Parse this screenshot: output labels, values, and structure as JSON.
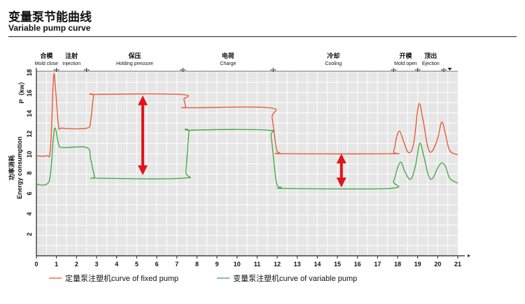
{
  "header": {
    "title_zh": "变量泵节能曲线",
    "title_en": "Variable pump curve"
  },
  "colors": {
    "fixed": "#e8542a",
    "variable": "#3aa83a",
    "arrow": "#e0141c",
    "plot_bg": "#e6e6e6",
    "grid": "#ffffff"
  },
  "chart_data": {
    "type": "line",
    "title": "Variable pump curve",
    "xlabel": "",
    "ylabel": "P（kw）",
    "ylabel_zh": "功率消耗",
    "ylabel_en": "Energy consumption",
    "xlim": [
      0,
      21
    ],
    "ylim": [
      0,
      18
    ],
    "x_ticks": [
      0,
      1,
      2,
      3,
      4,
      5,
      6,
      7,
      8,
      9,
      10,
      11,
      12,
      13,
      14,
      15,
      16,
      17,
      18,
      19,
      20,
      21
    ],
    "y_ticks": [
      2,
      4,
      6,
      8,
      10,
      12,
      14,
      16,
      18
    ],
    "grid": true,
    "legend_position": "bottom",
    "phases": [
      {
        "zh": "合模",
        "en": "Mold close",
        "start": 0.0,
        "end": 1.0
      },
      {
        "zh": "注射",
        "en": "Injection",
        "start": 1.0,
        "end": 2.5
      },
      {
        "zh": "保压",
        "en": "Holding pressure",
        "start": 2.5,
        "end": 7.3
      },
      {
        "zh": "电荷",
        "en": "Charge",
        "start": 7.3,
        "end": 11.8
      },
      {
        "zh": "冷却",
        "en": "Cooling",
        "start": 11.8,
        "end": 17.8
      },
      {
        "zh": "开模",
        "en": "Mold open",
        "start": 17.8,
        "end": 19.0
      },
      {
        "zh": "顶出",
        "en": "Ejection",
        "start": 19.0,
        "end": 20.3
      }
    ],
    "series": [
      {
        "name": "定量泵注塑机curve of fixed pump",
        "points": [
          [
            0,
            9.8
          ],
          [
            0.5,
            9.8
          ],
          [
            0.7,
            10.5
          ],
          [
            0.85,
            17.4
          ],
          [
            0.95,
            16.5
          ],
          [
            1.1,
            12.8
          ],
          [
            1.3,
            12.5
          ],
          [
            2.5,
            12.5
          ],
          [
            2.7,
            13.2
          ],
          [
            2.85,
            15.6
          ],
          [
            3.05,
            15.8
          ],
          [
            7.2,
            15.8
          ],
          [
            7.35,
            15.3
          ],
          [
            7.45,
            14.6
          ],
          [
            7.6,
            14.5
          ],
          [
            11.6,
            14.5
          ],
          [
            11.75,
            13.5
          ],
          [
            11.95,
            10.6
          ],
          [
            12.1,
            10.1
          ],
          [
            12.4,
            10.0
          ],
          [
            17.6,
            10.0
          ],
          [
            17.8,
            10.2
          ],
          [
            17.95,
            11.6
          ],
          [
            18.1,
            12.2
          ],
          [
            18.3,
            11.2
          ],
          [
            18.55,
            10.1
          ],
          [
            18.8,
            11.0
          ],
          [
            19.05,
            14.8
          ],
          [
            19.25,
            13.5
          ],
          [
            19.5,
            10.7
          ],
          [
            19.7,
            10.2
          ],
          [
            20.0,
            11.5
          ],
          [
            20.2,
            13.1
          ],
          [
            20.4,
            11.8
          ],
          [
            20.6,
            10.3
          ],
          [
            21,
            9.9
          ]
        ]
      },
      {
        "name": "变量泵注塑机curve of variable pump",
        "points": [
          [
            0,
            7.0
          ],
          [
            0.5,
            7.0
          ],
          [
            0.7,
            8.0
          ],
          [
            0.9,
            12.4
          ],
          [
            1.1,
            11.0
          ],
          [
            1.3,
            10.6
          ],
          [
            2.5,
            10.6
          ],
          [
            2.7,
            9.5
          ],
          [
            2.9,
            7.8
          ],
          [
            3.1,
            7.6
          ],
          [
            7.3,
            7.6
          ],
          [
            7.45,
            8.3
          ],
          [
            7.6,
            12.0
          ],
          [
            7.75,
            12.3
          ],
          [
            11.5,
            12.3
          ],
          [
            11.7,
            11.6
          ],
          [
            11.95,
            7.3
          ],
          [
            12.2,
            6.7
          ],
          [
            12.5,
            6.6
          ],
          [
            17.6,
            6.6
          ],
          [
            17.8,
            7.3
          ],
          [
            18.05,
            8.9
          ],
          [
            18.2,
            9.1
          ],
          [
            18.35,
            8.3
          ],
          [
            18.65,
            7.5
          ],
          [
            18.9,
            8.9
          ],
          [
            19.1,
            11.0
          ],
          [
            19.3,
            9.8
          ],
          [
            19.55,
            7.8
          ],
          [
            19.75,
            7.6
          ],
          [
            20.0,
            8.6
          ],
          [
            20.2,
            9.1
          ],
          [
            20.4,
            8.7
          ],
          [
            20.6,
            7.6
          ],
          [
            21,
            7.1
          ]
        ]
      }
    ],
    "arrows": [
      {
        "x": 5.3,
        "y_from": 15.7,
        "y_to": 7.9
      },
      {
        "x": 15.2,
        "y_from": 10.0,
        "y_to": 6.7
      }
    ]
  }
}
